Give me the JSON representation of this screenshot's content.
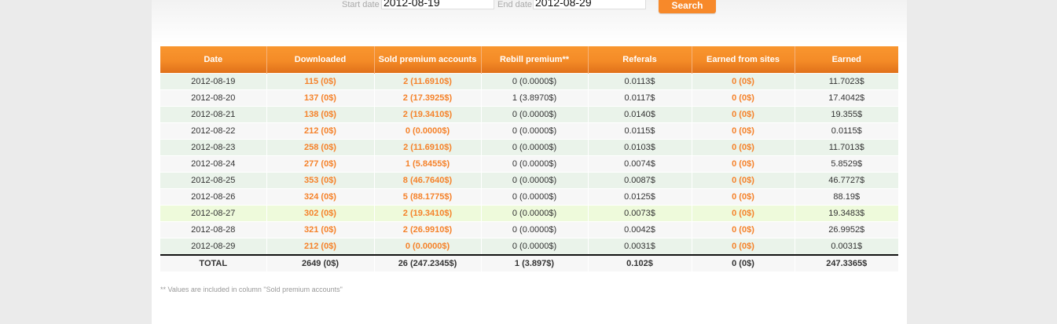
{
  "filter": {
    "start_label": "Start date",
    "start_value": "2012-08-19",
    "end_label": "End date",
    "end_value": "2012-08-29",
    "search_label": "Search"
  },
  "table": {
    "headers": [
      "Date",
      "Downloaded",
      "Sold premium accounts",
      "Rebill premium**",
      "Referals",
      "Earned from sites",
      "Earned"
    ],
    "rows": [
      [
        "2012-08-19",
        "115 (0$)",
        "2 (11.6910$)",
        "0 (0.0000$)",
        "0.0113$",
        "0 (0$)",
        "11.7023$"
      ],
      [
        "2012-08-20",
        "137 (0$)",
        "2 (17.3925$)",
        "1 (3.8970$)",
        "0.0117$",
        "0 (0$)",
        "17.4042$"
      ],
      [
        "2012-08-21",
        "138 (0$)",
        "2 (19.3410$)",
        "0 (0.0000$)",
        "0.0140$",
        "0 (0$)",
        "19.355$"
      ],
      [
        "2012-08-22",
        "212 (0$)",
        "0 (0.0000$)",
        "0 (0.0000$)",
        "0.0115$",
        "0 (0$)",
        "0.0115$"
      ],
      [
        "2012-08-23",
        "258 (0$)",
        "2 (11.6910$)",
        "0 (0.0000$)",
        "0.0103$",
        "0 (0$)",
        "11.7013$"
      ],
      [
        "2012-08-24",
        "277 (0$)",
        "1 (5.8455$)",
        "0 (0.0000$)",
        "0.0074$",
        "0 (0$)",
        "5.8529$"
      ],
      [
        "2012-08-25",
        "353 (0$)",
        "8 (46.7640$)",
        "0 (0.0000$)",
        "0.0087$",
        "0 (0$)",
        "46.7727$"
      ],
      [
        "2012-08-26",
        "324 (0$)",
        "5 (88.1775$)",
        "0 (0.0000$)",
        "0.0125$",
        "0 (0$)",
        "88.19$"
      ],
      [
        "2012-08-27",
        "302 (0$)",
        "2 (19.3410$)",
        "0 (0.0000$)",
        "0.0073$",
        "0 (0$)",
        "19.3483$"
      ],
      [
        "2012-08-28",
        "321 (0$)",
        "2 (26.9910$)",
        "0 (0.0000$)",
        "0.0042$",
        "0 (0$)",
        "26.9952$"
      ],
      [
        "2012-08-29",
        "212 (0$)",
        "0 (0.0000$)",
        "0 (0.0000$)",
        "0.0031$",
        "0 (0$)",
        "0.0031$"
      ]
    ],
    "highlighted_row": "2012-08-27",
    "total": [
      "TOTAL",
      "2649 (0$)",
      "26 (247.2345$)",
      "1 (3.897$)",
      "0.102$",
      "0 (0$)",
      "247.3365$"
    ]
  },
  "footnote": "** Values are included in column \"Sold premium accounts\"",
  "colors": {
    "accent": "#f7892a",
    "highlight_text": "#f5822a",
    "row_odd": "#eaf3ea",
    "row_even": "#f7f7f7",
    "row_hover": "#eefadb"
  }
}
